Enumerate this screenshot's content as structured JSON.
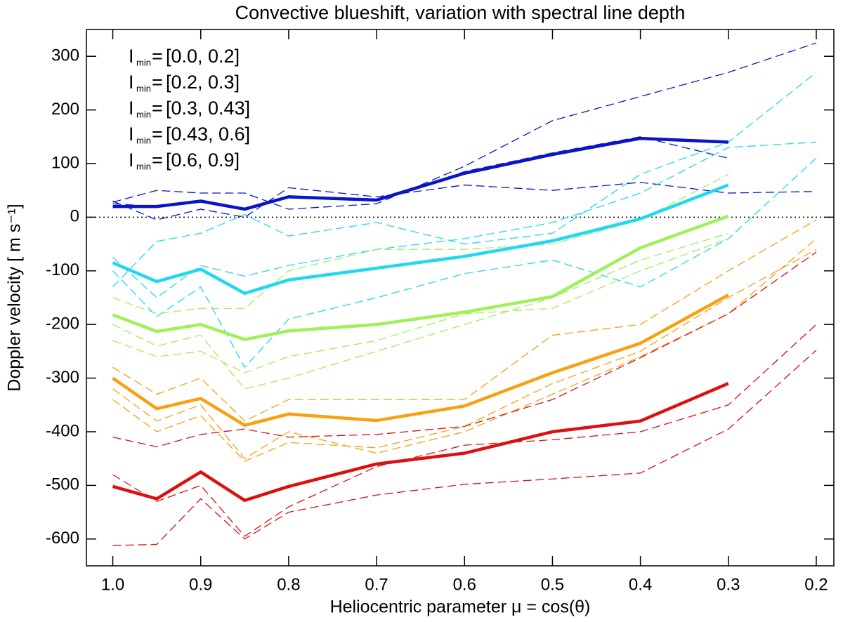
{
  "chart_data": {
    "type": "line",
    "title": "Convective blueshift, variation with spectral line depth",
    "x_label": "Heliocentric parameter μ = cos(θ)",
    "y_label": "Doppler velocity [ m s⁻¹]",
    "legend_symbol": "I",
    "legend_subscript": "min",
    "legend_sep": "=",
    "legend": "upper left",
    "xlim": [
      1.03,
      0.18
    ],
    "ylim": [
      -650,
      350
    ],
    "xticks": [
      {
        "value": 1.0,
        "label": "1.0"
      },
      0.9,
      0.8,
      0.7,
      0.6,
      0.5,
      0.4,
      0.3,
      0.2
    ],
    "yticks": [
      -600,
      -500,
      -400,
      -300,
      -200,
      -100,
      0,
      100,
      200,
      300
    ],
    "reference_line": 0,
    "x": [
      1.0,
      0.95,
      0.9,
      0.85,
      0.8,
      0.7,
      0.6,
      0.5,
      0.4,
      0.3,
      0.2
    ],
    "series": [
      {
        "name": "[0.0, 0.2]",
        "color": "#0a14c8",
        "values": [
          20,
          20,
          30,
          15,
          38,
          32,
          82,
          117,
          147,
          140,
          null
        ]
      },
      {
        "name": "[0.2, 0.3]",
        "color": "#22d8f0",
        "values": [
          -85,
          -120,
          -97,
          -142,
          -117,
          -95,
          -73,
          -44,
          -3,
          60,
          null
        ]
      },
      {
        "name": "[0.3, 0.43]",
        "color": "#a0f05a",
        "values": [
          -182,
          -213,
          -200,
          -228,
          -212,
          -200,
          -177,
          -148,
          -57,
          2,
          null
        ]
      },
      {
        "name": "[0.43, 0.6]",
        "color": "#f8a010",
        "values": [
          -300,
          -357,
          -338,
          -388,
          -367,
          -379,
          -352,
          -290,
          -235,
          -145,
          null
        ]
      },
      {
        "name": "[0.6, 0.9]",
        "color": "#dc1010",
        "values": [
          -502,
          -525,
          -475,
          -528,
          -502,
          -460,
          -440,
          -400,
          -380,
          -310,
          null
        ]
      }
    ],
    "dashed_series": [
      {
        "color": "#0a14c8",
        "values": [
          28,
          50,
          45,
          45,
          15,
          25,
          95,
          180,
          225,
          270,
          325
        ]
      },
      {
        "color": "#0a14c8",
        "values": [
          30,
          -5,
          15,
          0,
          55,
          38,
          60,
          50,
          65,
          45,
          48
        ]
      },
      {
        "color": "#0a14c8",
        "values": [
          25,
          20,
          30,
          15,
          40,
          30,
          85,
          120,
          150,
          110,
          null
        ]
      },
      {
        "color": "#22d8f0",
        "values": [
          -75,
          -150,
          -90,
          -110,
          -90,
          -60,
          -40,
          -10,
          45,
          130,
          140
        ]
      },
      {
        "color": "#22d8f0",
        "values": [
          -130,
          -45,
          -30,
          5,
          -35,
          -10,
          -50,
          -30,
          80,
          140,
          270
        ]
      },
      {
        "color": "#22d8f0",
        "values": [
          -100,
          -185,
          -130,
          -280,
          -190,
          -150,
          -105,
          -80,
          -130,
          -40,
          110
        ]
      },
      {
        "color": "#a0f05a",
        "values": [
          -150,
          -180,
          -170,
          -170,
          -100,
          -60,
          -60,
          -50,
          -5,
          80,
          null
        ]
      },
      {
        "color": "#a0f05a",
        "values": [
          -200,
          -240,
          -220,
          -320,
          -300,
          -250,
          -200,
          -150,
          -80,
          -30,
          null
        ]
      },
      {
        "color": "#a0f05a",
        "values": [
          -230,
          -260,
          -250,
          -290,
          -260,
          -230,
          -180,
          -170,
          -100,
          -40,
          null
        ]
      },
      {
        "color": "#f8a010",
        "values": [
          -280,
          -330,
          -300,
          -380,
          -340,
          -340,
          -340,
          -220,
          -200,
          -100,
          -5
        ]
      },
      {
        "color": "#f8a010",
        "values": [
          -320,
          -380,
          -350,
          -450,
          -400,
          -440,
          -400,
          -330,
          -260,
          -180,
          -40
        ]
      },
      {
        "color": "#f8a010",
        "values": [
          -340,
          -400,
          -370,
          -455,
          -420,
          -430,
          -390,
          -310,
          -250,
          -150,
          -60
        ]
      },
      {
        "color": "#dc1010",
        "values": [
          -410,
          -428,
          -405,
          -395,
          -410,
          -405,
          -390,
          -340,
          -262,
          -180,
          -65
        ]
      },
      {
        "color": "#dc1010",
        "values": [
          -480,
          -530,
          -500,
          -595,
          -540,
          -465,
          -425,
          -415,
          -400,
          -350,
          -200
        ]
      },
      {
        "color": "#dc1010",
        "values": [
          -612,
          -610,
          -525,
          -600,
          -550,
          -518,
          -498,
          -488,
          -477,
          -395,
          -248
        ]
      }
    ]
  }
}
